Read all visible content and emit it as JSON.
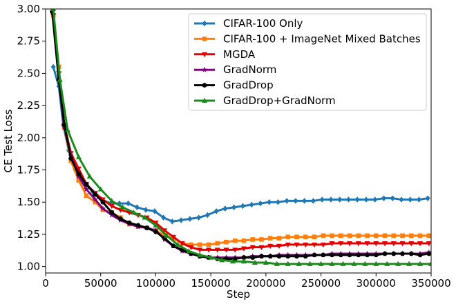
{
  "chart_data": {
    "type": "line",
    "xlabel": "Step",
    "ylabel": "CE Test Loss",
    "xlim": [
      0,
      350000
    ],
    "ylim": [
      0.95,
      3.0
    ],
    "xticks": [
      0,
      50000,
      100000,
      150000,
      200000,
      250000,
      300000,
      350000
    ],
    "xtick_labels": [
      "0",
      "50000",
      "100000",
      "150000",
      "200000",
      "250000",
      "300000",
      "350000"
    ],
    "yticks": [
      1.0,
      1.25,
      1.5,
      1.75,
      2.0,
      2.25,
      2.5,
      2.75,
      3.0
    ],
    "ytick_labels": [
      "1.00",
      "1.25",
      "1.50",
      "1.75",
      "2.00",
      "2.25",
      "2.50",
      "2.75",
      "3.00"
    ],
    "grid": false,
    "legend_position": "top-right",
    "series": [
      {
        "name": "CIFAR-100 Only",
        "color": "#1f77b4",
        "marker": "diamond",
        "x": [
          7000,
          12000,
          16000,
          21000,
          27000,
          35000,
          43000,
          51000,
          59000,
          67000,
          75000,
          83000,
          91000,
          99000,
          107000,
          115000,
          123000,
          131000,
          139000,
          147000,
          155000,
          163000,
          171000,
          179000,
          187000,
          195000,
          203000,
          211000,
          219000,
          227000,
          235000,
          243000,
          251000,
          259000,
          267000,
          275000,
          283000,
          291000,
          299000,
          307000,
          315000,
          323000,
          331000,
          339000,
          347000
        ],
        "y": [
          2.55,
          2.4,
          2.1,
          1.9,
          1.75,
          1.65,
          1.58,
          1.52,
          1.49,
          1.49,
          1.49,
          1.46,
          1.44,
          1.43,
          1.38,
          1.35,
          1.36,
          1.37,
          1.38,
          1.4,
          1.43,
          1.45,
          1.46,
          1.47,
          1.48,
          1.49,
          1.5,
          1.5,
          1.51,
          1.51,
          1.51,
          1.51,
          1.52,
          1.52,
          1.52,
          1.52,
          1.52,
          1.52,
          1.52,
          1.53,
          1.53,
          1.52,
          1.52,
          1.52,
          1.53
        ]
      },
      {
        "name": "CIFAR-100 + ImageNet Mixed Batches",
        "color": "#ff7f0e",
        "marker": "square",
        "x": [
          7000,
          12000,
          17000,
          23000,
          30000,
          37000,
          45000,
          52000,
          60000,
          68000,
          76000,
          84000,
          92000,
          100000,
          108000,
          116000,
          124000,
          132000,
          140000,
          148000,
          156000,
          164000,
          172000,
          180000,
          188000,
          196000,
          204000,
          212000,
          220000,
          228000,
          236000,
          244000,
          252000,
          260000,
          268000,
          276000,
          284000,
          292000,
          300000,
          308000,
          316000,
          324000,
          332000,
          340000,
          348000
        ],
        "y": [
          2.95,
          2.55,
          2.08,
          1.82,
          1.67,
          1.55,
          1.5,
          1.44,
          1.42,
          1.38,
          1.33,
          1.31,
          1.3,
          1.28,
          1.24,
          1.22,
          1.18,
          1.17,
          1.17,
          1.17,
          1.18,
          1.19,
          1.2,
          1.2,
          1.21,
          1.21,
          1.22,
          1.22,
          1.23,
          1.23,
          1.23,
          1.23,
          1.24,
          1.24,
          1.24,
          1.24,
          1.24,
          1.24,
          1.24,
          1.24,
          1.24,
          1.24,
          1.24,
          1.24,
          1.24
        ]
      },
      {
        "name": "MGDA",
        "color": "#e00000",
        "marker": "triangle-down",
        "x": [
          7000,
          12000,
          17000,
          23000,
          30000,
          37000,
          45000,
          52000,
          60000,
          68000,
          76000,
          84000,
          92000,
          100000,
          108000,
          116000,
          124000,
          132000,
          140000,
          148000,
          156000,
          164000,
          172000,
          180000,
          188000,
          196000,
          204000,
          212000,
          220000,
          228000,
          236000,
          244000,
          252000,
          260000,
          268000,
          276000,
          284000,
          292000,
          300000,
          308000,
          316000,
          324000,
          332000,
          340000,
          348000
        ],
        "y": [
          2.95,
          2.5,
          2.1,
          1.88,
          1.76,
          1.64,
          1.57,
          1.52,
          1.47,
          1.44,
          1.42,
          1.4,
          1.38,
          1.34,
          1.28,
          1.23,
          1.18,
          1.15,
          1.13,
          1.13,
          1.13,
          1.13,
          1.13,
          1.14,
          1.15,
          1.15,
          1.16,
          1.16,
          1.17,
          1.17,
          1.17,
          1.17,
          1.17,
          1.18,
          1.18,
          1.18,
          1.18,
          1.18,
          1.18,
          1.18,
          1.18,
          1.18,
          1.18,
          1.18,
          1.18
        ]
      },
      {
        "name": "GradNorm",
        "color": "#800080",
        "marker": "star",
        "x": [
          7000,
          12000,
          17000,
          23000,
          30000,
          37000,
          45000,
          52000,
          60000,
          68000,
          76000,
          84000,
          92000,
          100000,
          108000,
          116000,
          124000,
          132000,
          140000,
          148000,
          156000,
          164000,
          172000,
          180000,
          188000,
          196000,
          204000,
          212000,
          220000,
          228000,
          236000,
          244000,
          252000,
          260000,
          268000,
          276000,
          284000,
          292000,
          300000,
          308000,
          316000,
          324000,
          332000,
          340000,
          348000
        ],
        "y": [
          2.95,
          2.45,
          2.08,
          1.86,
          1.7,
          1.6,
          1.52,
          1.45,
          1.4,
          1.36,
          1.33,
          1.31,
          1.3,
          1.28,
          1.21,
          1.16,
          1.12,
          1.1,
          1.08,
          1.07,
          1.07,
          1.07,
          1.07,
          1.07,
          1.08,
          1.08,
          1.08,
          1.09,
          1.09,
          1.09,
          1.09,
          1.09,
          1.09,
          1.1,
          1.1,
          1.1,
          1.1,
          1.1,
          1.1,
          1.1,
          1.1,
          1.1,
          1.1,
          1.1,
          1.11
        ]
      },
      {
        "name": "GradDrop",
        "color": "#000000",
        "marker": "circle",
        "x": [
          6000,
          12000,
          17000,
          23000,
          30000,
          37000,
          45000,
          52000,
          60000,
          68000,
          76000,
          84000,
          92000,
          100000,
          108000,
          116000,
          124000,
          132000,
          140000,
          148000,
          156000,
          164000,
          172000,
          180000,
          188000,
          196000,
          204000,
          212000,
          220000,
          228000,
          236000,
          244000,
          252000,
          260000,
          268000,
          276000,
          284000,
          292000,
          300000,
          308000,
          316000,
          324000,
          332000,
          340000,
          348000
        ],
        "y": [
          2.98,
          2.45,
          2.1,
          1.84,
          1.72,
          1.64,
          1.56,
          1.5,
          1.42,
          1.37,
          1.34,
          1.32,
          1.3,
          1.27,
          1.22,
          1.16,
          1.13,
          1.1,
          1.08,
          1.07,
          1.06,
          1.06,
          1.06,
          1.07,
          1.07,
          1.08,
          1.08,
          1.08,
          1.08,
          1.08,
          1.08,
          1.09,
          1.09,
          1.09,
          1.09,
          1.09,
          1.09,
          1.09,
          1.09,
          1.1,
          1.1,
          1.1,
          1.1,
          1.09,
          1.1
        ]
      },
      {
        "name": "GradDrop+GradNorm",
        "color": "#1a8a1a",
        "marker": "triangle-up",
        "x": [
          7000,
          13000,
          20000,
          30000,
          40000,
          50000,
          60000,
          70000,
          80000,
          90000,
          100000,
          110000,
          120000,
          130000,
          140000,
          150000,
          160000,
          170000,
          180000,
          190000,
          200000,
          210000,
          220000,
          230000,
          240000,
          250000,
          260000,
          270000,
          280000,
          290000,
          300000,
          310000,
          320000,
          330000,
          340000,
          350000
        ],
        "y": [
          3.0,
          2.45,
          2.06,
          1.85,
          1.7,
          1.6,
          1.51,
          1.46,
          1.42,
          1.38,
          1.32,
          1.24,
          1.17,
          1.12,
          1.09,
          1.07,
          1.05,
          1.04,
          1.04,
          1.03,
          1.03,
          1.02,
          1.02,
          1.02,
          1.02,
          1.02,
          1.02,
          1.02,
          1.02,
          1.02,
          1.02,
          1.02,
          1.02,
          1.02,
          1.02,
          1.02
        ]
      }
    ]
  }
}
